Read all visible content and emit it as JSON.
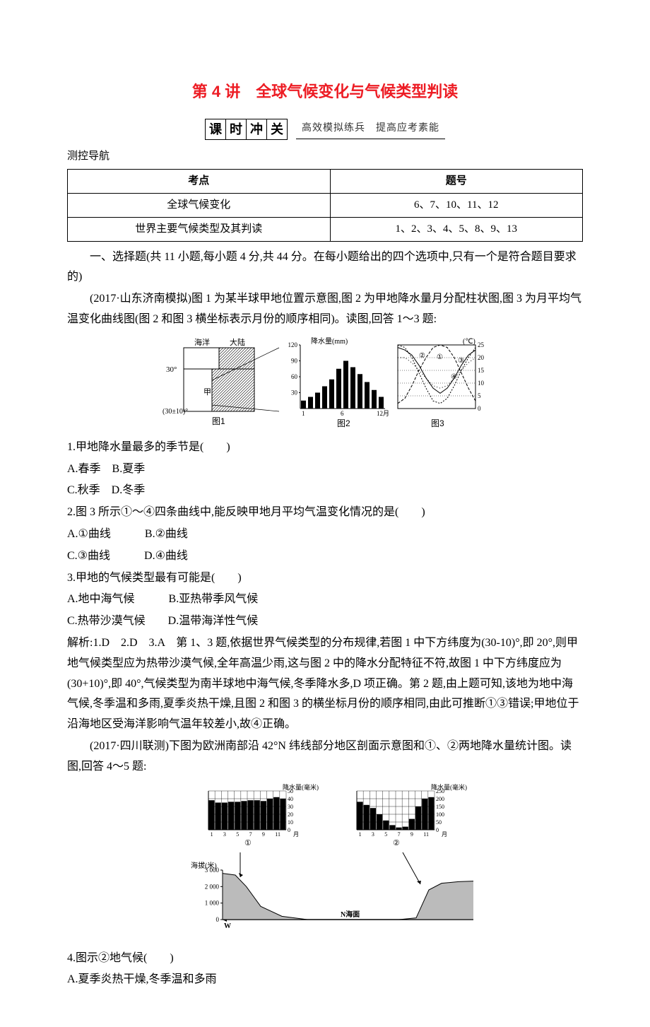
{
  "title": "第 4 讲　全球气候变化与气候类型判读",
  "banner": {
    "chars": [
      "课",
      "时",
      "冲",
      "关"
    ],
    "sub": "高效模拟练兵　提高应考素能"
  },
  "guide_label": "测控导航",
  "guide_table": {
    "columns": [
      "考点",
      "题号"
    ],
    "rows": [
      [
        "全球气候变化",
        "6、7、10、11、12"
      ],
      [
        "世界主要气候类型及其判读",
        "1、2、3、4、5、8、9、13"
      ]
    ]
  },
  "section1_intro": "一、选择题(共 11 小题,每小题 4 分,共 44 分。在每小题给出的四个选项中,只有一个是符合题目要求的)",
  "passage1": "(2017·山东济南模拟)图 1 为某半球甲地位置示意图,图 2 为甲地降水量月分配柱状图,图 3 为月平均气温变化曲线图(图 2 和图 3 横坐标表示月份的顺序相同)。读图,回答 1～3 题:",
  "fig1": {
    "map": {
      "labels": {
        "ocean": "海洋",
        "land": "大陆",
        "lat1": "30°",
        "lat2": "(30±10)°",
        "mark": "甲"
      },
      "caption": "图1"
    },
    "bar": {
      "title": "降水量(mm)",
      "xticks": [
        "1",
        "6",
        "12月"
      ],
      "yticks": [
        30,
        60,
        90,
        120
      ],
      "values": [
        15,
        22,
        30,
        42,
        55,
        75,
        90,
        78,
        65,
        50,
        35,
        22
      ],
      "ymax": 120,
      "bar_color": "#000",
      "caption": "图2"
    },
    "temp": {
      "title": "(℃)",
      "yticks": [
        0,
        5,
        10,
        15,
        20,
        25
      ],
      "ymax": 25,
      "curves": {
        "c1": {
          "label": "①",
          "dash": "4 2",
          "values": [
            2,
            4,
            9,
            15,
            20,
            24,
            25,
            24,
            20,
            14,
            8,
            3
          ]
        },
        "c2": {
          "label": "②",
          "dash": "0",
          "values": [
            24,
            23,
            21,
            17,
            12,
            8,
            6,
            8,
            12,
            17,
            21,
            23
          ]
        },
        "c3": {
          "label": "③",
          "dash": "2 2",
          "values": [
            25,
            24,
            20,
            14,
            8,
            3,
            2,
            4,
            9,
            15,
            20,
            24
          ]
        },
        "c4": {
          "label": "④",
          "dash": "1 3",
          "values": [
            20,
            20,
            18,
            15,
            12,
            9,
            8,
            9,
            12,
            15,
            18,
            20
          ]
        }
      },
      "caption": "图3"
    }
  },
  "q1": {
    "stem": "1.甲地降水量最多的季节是(　　)",
    "opts": [
      "A.春季　B.夏季",
      "C.秋季　D.冬季"
    ]
  },
  "q2": {
    "stem": "2.图 3 所示①～④四条曲线中,能反映甲地月平均气温变化情况的是(　　)",
    "opts": [
      "A.①曲线　　　B.②曲线",
      "C.③曲线　　　D.④曲线"
    ]
  },
  "q3": {
    "stem": "3.甲地的气候类型最有可能是(　　)",
    "opts": [
      "A.地中海气候　　　B.亚热带季风气候",
      "C.热带沙漠气候　　D.温带海洋性气候"
    ]
  },
  "exp1": "解析:1.D　2.D　3.A　第 1、3 题,依据世界气候类型的分布规律,若图 1 中下方纬度为(30-10)°,即 20°,则甲地气候类型应为热带沙漠气候,全年高温少雨,这与图 2 中的降水分配特征不符,故图 1 中下方纬度应为(30+10)°,即 40°,气候类型为南半球地中海气候,冬季降水多,D 项正确。第 2 题,由上题可知,该地为地中海气候,冬季温和多雨,夏季炎热干燥,且图 2 和图 3 的横坐标月份的顺序相同,由此可推断①③错误;甲地位于沿海地区受海洋影响气温年较差小,故④正确。",
  "passage2": "(2017·四川联测)下图为欧洲南部沿 42°N 纬线部分地区剖面示意图和①、②两地降水量统计图。读图,回答 4～5 题:",
  "fig2": {
    "bar1": {
      "title": "降水量(毫米)",
      "yticks": [
        0,
        10,
        20,
        30,
        40,
        50
      ],
      "ymax": 50,
      "xticks": [
        "1",
        "3",
        "5",
        "7",
        "9",
        "11",
        "月"
      ],
      "values": [
        38,
        35,
        35,
        36,
        36,
        37,
        38,
        38,
        37,
        40,
        42,
        40
      ],
      "caption": "①"
    },
    "bar2": {
      "title": "降水量(毫米)",
      "yticks": [
        0,
        50,
        100,
        150,
        200,
        250
      ],
      "ymax": 250,
      "xticks": [
        "1",
        "3",
        "5",
        "7",
        "9",
        "11",
        "月"
      ],
      "values": [
        180,
        160,
        140,
        100,
        60,
        30,
        15,
        20,
        70,
        150,
        200,
        210
      ],
      "caption": "②"
    },
    "profile": {
      "ylabel": "海拔(米)",
      "yticks": [
        0,
        1000,
        2000,
        3000
      ],
      "ymax": 3000,
      "sea": "N海面",
      "w": "W",
      "e": "E",
      "west_profile": [
        [
          0,
          2800
        ],
        [
          15,
          2700
        ],
        [
          28,
          2000
        ],
        [
          45,
          800
        ],
        [
          70,
          200
        ],
        [
          100,
          0
        ]
      ],
      "east_profile": [
        [
          0,
          0
        ],
        [
          20,
          100
        ],
        [
          35,
          1800
        ],
        [
          50,
          2200
        ],
        [
          70,
          2300
        ],
        [
          100,
          2350
        ]
      ]
    }
  },
  "q4": {
    "stem": "4.图示②地气候(　　)",
    "opts": [
      "A.夏季炎热干燥,冬季温和多雨"
    ]
  }
}
